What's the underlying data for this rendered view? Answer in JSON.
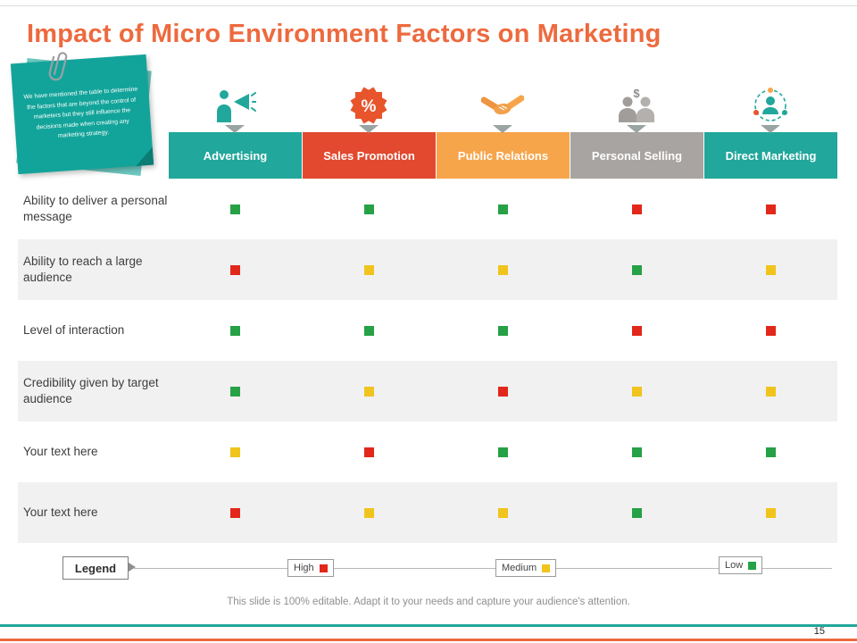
{
  "slide": {
    "title": "Impact of Micro Environment Factors on Marketing",
    "page_number": "15",
    "footer_note": "This slide is 100% editable. Adapt it to your needs and capture your audience's attention."
  },
  "sticky_note": {
    "text": "We have mentioned the table to determine the factors that are beyond the control of marketers but they still influence the decisions made when creating any marketing strategy.",
    "color": "#12a49a"
  },
  "table": {
    "columns": [
      {
        "label": "Advertising",
        "color": "#21a79b",
        "icon": "megaphone-icon"
      },
      {
        "label": "Sales Promotion",
        "color": "#e2492f",
        "icon": "percent-burst-icon"
      },
      {
        "label": "Public Relations",
        "color": "#f7a54b",
        "icon": "handshake-icon"
      },
      {
        "label": "Personal Selling",
        "color": "#a8a4a1",
        "icon": "people-dollar-icon"
      },
      {
        "label": "Direct Marketing",
        "color": "#21a79b",
        "icon": "person-network-icon"
      }
    ],
    "rows": [
      {
        "label": "Ability to deliver a personal message",
        "ratings": [
          "low",
          "low",
          "low",
          "high",
          "high"
        ]
      },
      {
        "label": "Ability to reach a large audience",
        "ratings": [
          "high",
          "medium",
          "medium",
          "low",
          "medium"
        ]
      },
      {
        "label": "Level of interaction",
        "ratings": [
          "low",
          "low",
          "low",
          "high",
          "high"
        ]
      },
      {
        "label": "Credibility given by target audience",
        "ratings": [
          "low",
          "medium",
          "high",
          "medium",
          "medium"
        ]
      },
      {
        "label": "Your text here",
        "ratings": [
          "medium",
          "high",
          "low",
          "low",
          "low"
        ]
      },
      {
        "label": "Your text here",
        "ratings": [
          "high",
          "medium",
          "medium",
          "low",
          "medium"
        ]
      }
    ]
  },
  "rating_colors": {
    "high": "#e2271b",
    "medium": "#f0c41d",
    "low": "#26a146"
  },
  "legend": {
    "label": "Legend",
    "items": [
      {
        "label": "High",
        "color": "#e2271b"
      },
      {
        "label": "Medium",
        "color": "#f0c41d"
      },
      {
        "label": "Low",
        "color": "#26a146"
      }
    ]
  }
}
